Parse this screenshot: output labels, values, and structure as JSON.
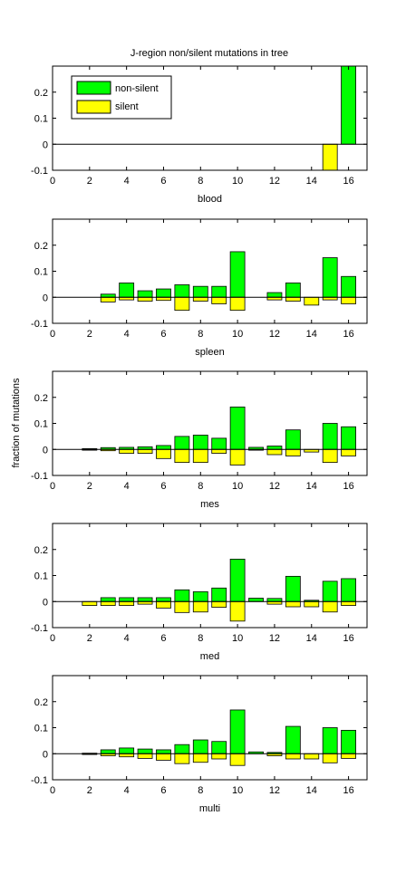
{
  "figure": {
    "title": "J-region non/silent mutations in tree",
    "ylabel": "fraction of mutations"
  },
  "legend": {
    "entries": [
      {
        "label": "non-silent",
        "color": "#00ff00"
      },
      {
        "label": "silent",
        "color": "#ffff00"
      }
    ],
    "placement": "top-left of first panel"
  },
  "chart_data": [
    {
      "type": "bar",
      "panel_label": "blood",
      "x": [
        1,
        2,
        3,
        4,
        5,
        6,
        7,
        8,
        9,
        10,
        11,
        12,
        13,
        14,
        15,
        16
      ],
      "series": [
        {
          "name": "non-silent",
          "color": "#00ff00",
          "values": [
            0,
            0,
            0,
            0,
            0,
            0,
            0,
            0,
            0,
            0,
            0,
            0,
            0,
            0,
            0,
            0.3
          ]
        },
        {
          "name": "silent",
          "color": "#ffff00",
          "values": [
            0,
            0,
            0,
            0,
            0,
            0,
            0,
            0,
            0,
            0,
            0,
            0,
            0,
            0,
            -0.1,
            0
          ]
        }
      ],
      "xlim": [
        0,
        17
      ],
      "ylim": [
        -0.1,
        0.3
      ],
      "xticks": [
        0,
        2,
        4,
        6,
        8,
        10,
        12,
        14,
        16
      ],
      "yticks": [
        -0.1,
        0,
        0.1,
        0.2
      ],
      "ytick_labels": [
        "-0.1",
        "0",
        "0.1",
        "0.2"
      ],
      "grid": false
    },
    {
      "type": "bar",
      "panel_label": "spleen",
      "x": [
        1,
        2,
        3,
        4,
        5,
        6,
        7,
        8,
        9,
        10,
        11,
        12,
        13,
        14,
        15,
        16
      ],
      "series": [
        {
          "name": "non-silent",
          "color": "#00ff00",
          "values": [
            0,
            0,
            0.012,
            0.055,
            0.025,
            0.032,
            0.048,
            0.042,
            0.042,
            0.175,
            0,
            0.018,
            0.055,
            0,
            0.152,
            0.08
          ]
        },
        {
          "name": "silent",
          "color": "#ffff00",
          "values": [
            0,
            0,
            -0.018,
            -0.01,
            -0.015,
            -0.012,
            -0.05,
            -0.015,
            -0.025,
            -0.05,
            0,
            -0.01,
            -0.015,
            -0.03,
            -0.01,
            -0.025
          ]
        }
      ],
      "xlim": [
        0,
        17
      ],
      "ylim": [
        -0.1,
        0.3
      ],
      "xticks": [
        0,
        2,
        4,
        6,
        8,
        10,
        12,
        14,
        16
      ],
      "yticks": [
        -0.1,
        0,
        0.1,
        0.2
      ],
      "ytick_labels": [
        "-0.1",
        "0",
        "0.1",
        "0.2"
      ],
      "grid": false
    },
    {
      "type": "bar",
      "panel_label": "mes",
      "x": [
        1,
        2,
        3,
        4,
        5,
        6,
        7,
        8,
        9,
        10,
        11,
        12,
        13,
        14,
        15,
        16
      ],
      "series": [
        {
          "name": "non-silent",
          "color": "#00ff00",
          "values": [
            0,
            0.003,
            0.007,
            0.008,
            0.01,
            0.015,
            0.05,
            0.055,
            0.043,
            0.163,
            0.008,
            0.013,
            0.075,
            0,
            0.1,
            0.087
          ]
        },
        {
          "name": "silent",
          "color": "#ffff00",
          "values": [
            0,
            -0.003,
            -0.005,
            -0.015,
            -0.015,
            -0.035,
            -0.05,
            -0.05,
            -0.015,
            -0.06,
            -0.003,
            -0.02,
            -0.025,
            -0.01,
            -0.05,
            -0.025
          ]
        }
      ],
      "xlim": [
        0,
        17
      ],
      "ylim": [
        -0.1,
        0.3
      ],
      "xticks": [
        0,
        2,
        4,
        6,
        8,
        10,
        12,
        14,
        16
      ],
      "yticks": [
        -0.1,
        0,
        0.1,
        0.2
      ],
      "ytick_labels": [
        "-0.1",
        "0",
        "0.1",
        "0.2"
      ],
      "grid": false
    },
    {
      "type": "bar",
      "panel_label": "med",
      "x": [
        1,
        2,
        3,
        4,
        5,
        6,
        7,
        8,
        9,
        10,
        11,
        12,
        13,
        14,
        15,
        16
      ],
      "series": [
        {
          "name": "non-silent",
          "color": "#00ff00",
          "values": [
            0,
            0,
            0.015,
            0.015,
            0.015,
            0.015,
            0.045,
            0.038,
            0.052,
            0.163,
            0.013,
            0.012,
            0.097,
            0.005,
            0.078,
            0.088
          ]
        },
        {
          "name": "silent",
          "color": "#ffff00",
          "values": [
            0,
            -0.015,
            -0.015,
            -0.015,
            -0.01,
            -0.025,
            -0.042,
            -0.04,
            -0.022,
            -0.075,
            0,
            -0.01,
            -0.02,
            -0.02,
            -0.04,
            -0.015
          ]
        }
      ],
      "xlim": [
        0,
        17
      ],
      "ylim": [
        -0.1,
        0.3
      ],
      "xticks": [
        0,
        2,
        4,
        6,
        8,
        10,
        12,
        14,
        16
      ],
      "yticks": [
        -0.1,
        0,
        0.1,
        0.2
      ],
      "ytick_labels": [
        "-0.1",
        "0",
        "0.1",
        "0.2"
      ],
      "grid": false
    },
    {
      "type": "bar",
      "panel_label": "multi",
      "x": [
        1,
        2,
        3,
        4,
        5,
        6,
        7,
        8,
        9,
        10,
        11,
        12,
        13,
        14,
        15,
        16
      ],
      "series": [
        {
          "name": "non-silent",
          "color": "#00ff00",
          "values": [
            0,
            0.002,
            0.015,
            0.022,
            0.018,
            0.015,
            0.035,
            0.053,
            0.047,
            0.168,
            0.007,
            0.005,
            0.105,
            0,
            0.1,
            0.09
          ]
        },
        {
          "name": "silent",
          "color": "#ffff00",
          "values": [
            0,
            -0.003,
            -0.008,
            -0.012,
            -0.018,
            -0.025,
            -0.038,
            -0.033,
            -0.02,
            -0.045,
            0,
            -0.008,
            -0.02,
            -0.02,
            -0.035,
            -0.018
          ]
        }
      ],
      "xlim": [
        0,
        17
      ],
      "ylim": [
        -0.1,
        0.3
      ],
      "xticks": [
        0,
        2,
        4,
        6,
        8,
        10,
        12,
        14,
        16
      ],
      "yticks": [
        -0.1,
        0,
        0.1,
        0.2
      ],
      "ytick_labels": [
        "-0.1",
        "0",
        "0.1",
        "0.2"
      ],
      "grid": false
    }
  ]
}
